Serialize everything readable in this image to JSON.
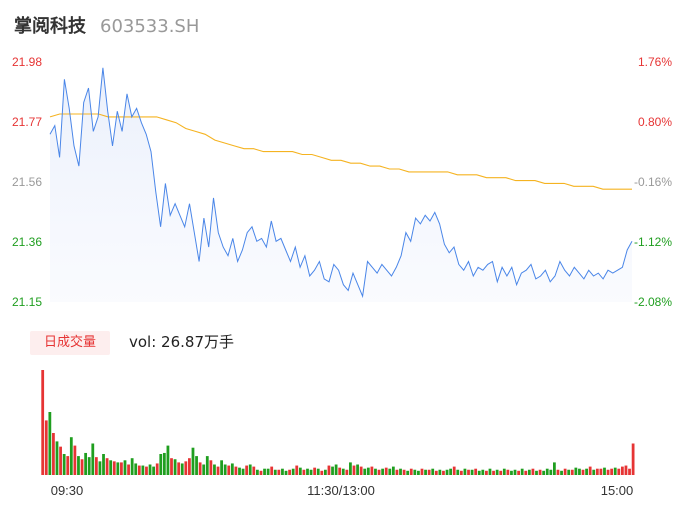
{
  "header": {
    "name": "掌阅科技",
    "code": "603533.SH"
  },
  "volume_panel": {
    "tab_label": "日成交量",
    "vol_text": "vol: 26.87万手"
  },
  "colors": {
    "price_line": "#4a86e8",
    "avg_line": "#f5b321",
    "up": "#e63434",
    "down": "#1f9e1f",
    "axis_text": "#999999"
  },
  "chart_data": [
    {
      "type": "line",
      "title": "",
      "x_ticks": [
        "09:30",
        "11:30/13:00",
        "15:00"
      ],
      "y_ticks_left": [
        "21.98",
        "21.77",
        "21.56",
        "21.36",
        "21.15"
      ],
      "y_ticks_right": [
        "1.76%",
        "0.80%",
        "-0.16%",
        "-1.12%",
        "-2.08%"
      ],
      "ylim": [
        21.15,
        21.98
      ],
      "reference_price": 21.59,
      "series": [
        {
          "role": "price",
          "values": [
            21.73,
            21.76,
            21.65,
            21.92,
            21.82,
            21.69,
            21.62,
            21.84,
            21.89,
            21.74,
            21.79,
            21.96,
            21.81,
            21.69,
            21.81,
            21.74,
            21.87,
            21.79,
            21.82,
            21.77,
            21.73,
            21.67,
            21.53,
            21.41,
            21.56,
            21.45,
            21.49,
            21.45,
            21.41,
            21.49,
            21.39,
            21.29,
            21.44,
            21.34,
            21.51,
            21.39,
            21.34,
            21.31,
            21.37,
            21.29,
            21.33,
            21.39,
            21.41,
            21.36,
            21.37,
            21.34,
            21.43,
            21.36,
            21.37,
            21.33,
            21.29,
            21.34,
            21.27,
            21.31,
            21.24,
            21.26,
            21.29,
            21.23,
            21.22,
            21.28,
            21.26,
            21.21,
            21.19,
            21.25,
            21.21,
            21.17,
            21.29,
            21.27,
            21.25,
            21.28,
            21.26,
            21.24,
            21.27,
            21.31,
            21.39,
            21.36,
            21.44,
            21.42,
            21.45,
            21.43,
            21.46,
            21.42,
            21.35,
            21.32,
            21.34,
            21.28,
            21.26,
            21.29,
            21.24,
            21.27,
            21.26,
            21.28,
            21.29,
            21.22,
            21.27,
            21.24,
            21.27,
            21.21,
            21.25,
            21.26,
            21.28,
            21.23,
            21.24,
            21.26,
            21.22,
            21.24,
            21.29,
            21.26,
            21.24,
            21.27,
            21.25,
            21.23,
            21.26,
            21.24,
            21.25,
            21.23,
            21.26,
            21.25,
            21.26,
            21.27,
            21.33,
            21.36
          ]
        },
        {
          "role": "average",
          "values": [
            21.79,
            21.8,
            21.8,
            21.8,
            21.8,
            21.8,
            21.79,
            21.79,
            21.79,
            21.79,
            21.79,
            21.79,
            21.78,
            21.77,
            21.75,
            21.74,
            21.73,
            21.71,
            21.7,
            21.69,
            21.68,
            21.68,
            21.67,
            21.67,
            21.67,
            21.67,
            21.66,
            21.66,
            21.65,
            21.64,
            21.64,
            21.63,
            21.63,
            21.62,
            21.62,
            21.61,
            21.61,
            21.6,
            21.6,
            21.6,
            21.6,
            21.6,
            21.59,
            21.59,
            21.59,
            21.58,
            21.58,
            21.58,
            21.57,
            21.57,
            21.57,
            21.56,
            21.56,
            21.56,
            21.55,
            21.55,
            21.55,
            21.54,
            21.54,
            21.54,
            21.54
          ]
        }
      ]
    },
    {
      "type": "bar",
      "title": "",
      "x_ticks": [
        "09:30",
        "11:30/13:00",
        "15:00"
      ],
      "values": [
        100,
        52,
        60,
        40,
        32,
        27,
        20,
        18,
        36,
        28,
        18,
        15,
        21,
        17,
        30,
        17,
        13,
        20,
        16,
        14,
        13,
        12,
        12,
        14,
        10,
        16,
        11,
        9,
        9,
        8,
        10,
        8,
        11,
        20,
        21,
        28,
        16,
        15,
        12,
        11,
        13,
        16,
        26,
        18,
        12,
        10,
        18,
        14,
        10,
        8,
        14,
        10,
        9,
        11,
        8,
        7,
        6,
        9,
        10,
        8,
        5,
        4,
        6,
        6,
        8,
        5,
        5,
        6,
        4,
        5,
        6,
        9,
        7,
        5,
        6,
        5,
        7,
        6,
        4,
        5,
        9,
        8,
        10,
        7,
        6,
        5,
        12,
        9,
        10,
        8,
        6,
        7,
        8,
        6,
        5,
        6,
        7,
        6,
        8,
        5,
        6,
        5,
        4,
        6,
        5,
        4,
        6,
        5,
        5,
        6,
        4,
        5,
        4,
        5,
        6,
        8,
        5,
        4,
        6,
        5,
        5,
        6,
        4,
        5,
        4,
        6,
        4,
        5,
        4,
        6,
        5,
        4,
        5,
        4,
        6,
        4,
        5,
        6,
        4,
        5,
        4,
        6,
        5,
        12,
        5,
        4,
        6,
        5,
        5,
        7,
        6,
        5,
        6,
        8,
        5,
        6,
        6,
        7,
        5,
        6,
        7,
        6,
        8,
        9,
        6,
        30
      ],
      "up": [
        1,
        1,
        0,
        1,
        0,
        1,
        0,
        1,
        0,
        1,
        0,
        1,
        0,
        0,
        0,
        1,
        0,
        0,
        1,
        0,
        1,
        0,
        1,
        0,
        1,
        0,
        0,
        1,
        0,
        1,
        0,
        0,
        1,
        0,
        0,
        0,
        1,
        0,
        1,
        0,
        1,
        1,
        0,
        0,
        1,
        0,
        0,
        1,
        0,
        1,
        0,
        0,
        1,
        0,
        1,
        0,
        0,
        1,
        0,
        1,
        0,
        1,
        0,
        0,
        1,
        0,
        1,
        0,
        0,
        1,
        0,
        1,
        0,
        1,
        0,
        0,
        1,
        0,
        1,
        0,
        1,
        0,
        0,
        1,
        0,
        1,
        0,
        1,
        0,
        1,
        0,
        0,
        1,
        0,
        1,
        0,
        1,
        0,
        0,
        1,
        0,
        1,
        0,
        1,
        0,
        0,
        1,
        0,
        1,
        0,
        1,
        0,
        1,
        0,
        0,
        1,
        0,
        1,
        0,
        1,
        0,
        1,
        0,
        0,
        1,
        0,
        1,
        0,
        1,
        0,
        1,
        0,
        0,
        1,
        0,
        1,
        0,
        1,
        0,
        1,
        0,
        0,
        0,
        0,
        1,
        0,
        1,
        0,
        1,
        0,
        0,
        1,
        0,
        1,
        0,
        1,
        1,
        0,
        1,
        1,
        0,
        1,
        1,
        1,
        1,
        1
      ]
    }
  ]
}
